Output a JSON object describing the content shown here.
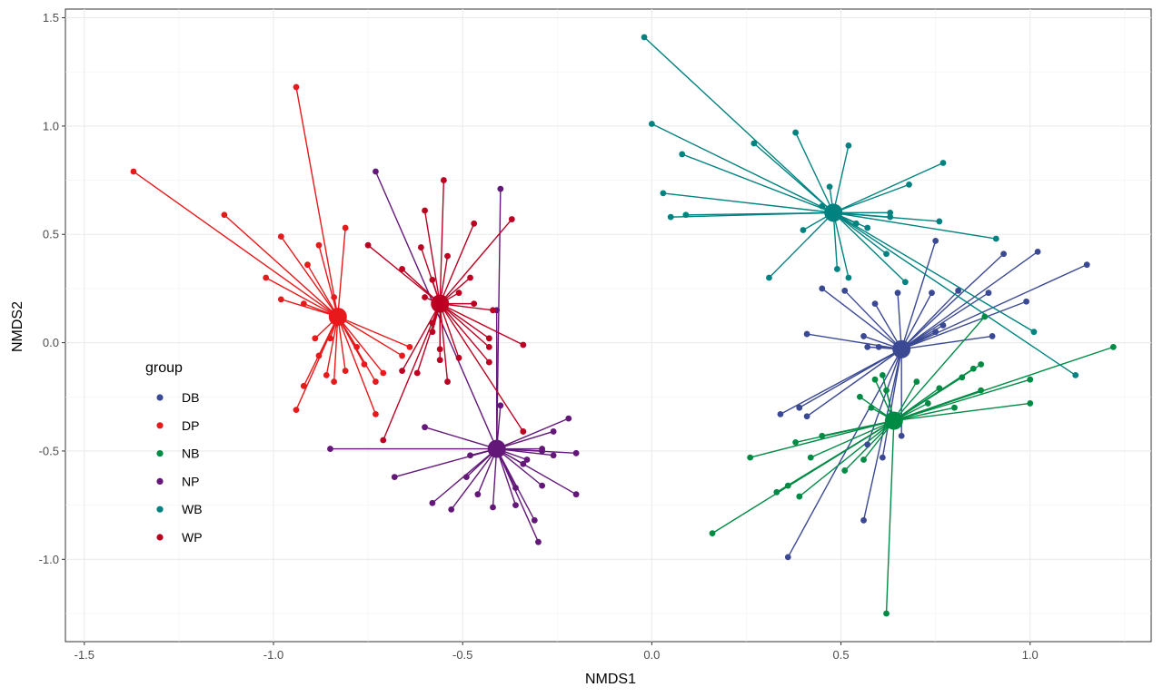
{
  "chart_data": {
    "type": "scatter",
    "xlabel": "NMDS1",
    "ylabel": "NMDS2",
    "xlim": [
      -1.55,
      1.32
    ],
    "ylim": [
      -1.38,
      1.54
    ],
    "xticks": [
      -1.5,
      -1.0,
      -0.5,
      0.0,
      0.5,
      1.0
    ],
    "xtick_labels": [
      "-1.5",
      "-1.0",
      "-0.5",
      "0.0",
      "0.5",
      "1.0"
    ],
    "yticks": [
      -1.0,
      -0.5,
      0.0,
      0.5,
      1.0,
      1.5
    ],
    "ytick_labels": [
      "-1.0",
      "-0.5",
      "0.0",
      "0.5",
      "1.0",
      "1.5"
    ],
    "grid": true,
    "legend_title": "group",
    "legend_position": "inside-left",
    "series": [
      {
        "name": "DB",
        "color": "#3B4994",
        "centroid": [
          0.66,
          -0.03
        ],
        "points": [
          [
            0.75,
            0.47
          ],
          [
            1.02,
            0.42
          ],
          [
            0.93,
            0.41
          ],
          [
            1.15,
            0.36
          ],
          [
            0.81,
            0.24
          ],
          [
            0.89,
            0.23
          ],
          [
            0.99,
            0.19
          ],
          [
            0.45,
            0.25
          ],
          [
            0.51,
            0.24
          ],
          [
            0.59,
            0.18
          ],
          [
            0.74,
            0.23
          ],
          [
            0.65,
            0.23
          ],
          [
            0.77,
            0.08
          ],
          [
            0.41,
            0.04
          ],
          [
            0.56,
            0.03
          ],
          [
            0.57,
            -0.02
          ],
          [
            0.6,
            -0.02
          ],
          [
            0.65,
            -0.03
          ],
          [
            0.75,
            0.05
          ],
          [
            0.9,
            0.03
          ],
          [
            0.34,
            -0.33
          ],
          [
            0.39,
            -0.3
          ],
          [
            0.41,
            -0.34
          ],
          [
            0.57,
            -0.47
          ],
          [
            0.61,
            -0.53
          ],
          [
            0.66,
            -0.43
          ],
          [
            0.56,
            -0.82
          ],
          [
            0.36,
            -0.99
          ]
        ]
      },
      {
        "name": "DP",
        "color": "#E8191B",
        "centroid": [
          -0.83,
          0.12
        ],
        "points": [
          [
            -1.37,
            0.79
          ],
          [
            -0.94,
            1.18
          ],
          [
            -1.13,
            0.59
          ],
          [
            -0.98,
            0.49
          ],
          [
            -0.91,
            0.36
          ],
          [
            -1.02,
            0.3
          ],
          [
            -0.98,
            0.2
          ],
          [
            -0.92,
            0.18
          ],
          [
            -0.84,
            0.21
          ],
          [
            -0.81,
            0.53
          ],
          [
            -0.88,
            0.45
          ],
          [
            -0.89,
            0.02
          ],
          [
            -0.88,
            -0.06
          ],
          [
            -0.86,
            -0.15
          ],
          [
            -0.94,
            -0.31
          ],
          [
            -0.92,
            -0.2
          ],
          [
            -0.84,
            -0.18
          ],
          [
            -0.81,
            -0.13
          ],
          [
            -0.78,
            -0.02
          ],
          [
            -0.76,
            -0.1
          ],
          [
            -0.73,
            -0.18
          ],
          [
            -0.73,
            -0.33
          ],
          [
            -0.71,
            -0.14
          ],
          [
            -0.66,
            -0.06
          ],
          [
            -0.64,
            -0.02
          ],
          [
            -0.85,
            0.02
          ]
        ]
      },
      {
        "name": "NB",
        "color": "#008B45",
        "centroid": [
          0.64,
          -0.36
        ],
        "points": [
          [
            0.88,
            0.12
          ],
          [
            1.22,
            -0.02
          ],
          [
            1.0,
            -0.17
          ],
          [
            1.0,
            -0.28
          ],
          [
            0.87,
            -0.22
          ],
          [
            0.87,
            -0.1
          ],
          [
            0.85,
            -0.12
          ],
          [
            0.82,
            -0.16
          ],
          [
            0.76,
            -0.21
          ],
          [
            0.73,
            -0.28
          ],
          [
            0.7,
            -0.18
          ],
          [
            0.61,
            -0.15
          ],
          [
            0.59,
            -0.17
          ],
          [
            0.55,
            -0.25
          ],
          [
            0.58,
            -0.3
          ],
          [
            0.62,
            -0.22
          ],
          [
            0.45,
            -0.43
          ],
          [
            0.38,
            -0.46
          ],
          [
            0.42,
            -0.53
          ],
          [
            0.26,
            -0.53
          ],
          [
            0.33,
            -0.69
          ],
          [
            0.36,
            -0.66
          ],
          [
            0.39,
            -0.71
          ],
          [
            0.51,
            -0.59
          ],
          [
            0.56,
            -0.54
          ],
          [
            0.16,
            -0.88
          ],
          [
            0.62,
            -1.25
          ],
          [
            0.8,
            -0.3
          ]
        ]
      },
      {
        "name": "NP",
        "color": "#631879",
        "centroid": [
          -0.41,
          -0.49
        ],
        "points": [
          [
            -0.73,
            0.79
          ],
          [
            -0.4,
            0.71
          ],
          [
            -0.41,
            0.15
          ],
          [
            -0.4,
            -0.29
          ],
          [
            -0.22,
            -0.35
          ],
          [
            -0.26,
            -0.41
          ],
          [
            -0.29,
            -0.49
          ],
          [
            -0.29,
            -0.5
          ],
          [
            -0.26,
            -0.52
          ],
          [
            -0.2,
            -0.51
          ],
          [
            -0.6,
            -0.39
          ],
          [
            -0.85,
            -0.49
          ],
          [
            -0.68,
            -0.62
          ],
          [
            -0.58,
            -0.74
          ],
          [
            -0.53,
            -0.77
          ],
          [
            -0.49,
            -0.62
          ],
          [
            -0.46,
            -0.7
          ],
          [
            -0.42,
            -0.76
          ],
          [
            -0.36,
            -0.67
          ],
          [
            -0.34,
            -0.56
          ],
          [
            -0.29,
            -0.66
          ],
          [
            -0.31,
            -0.82
          ],
          [
            -0.3,
            -0.92
          ],
          [
            -0.2,
            -0.7
          ],
          [
            -0.48,
            -0.52
          ],
          [
            -0.33,
            -0.54
          ],
          [
            -0.36,
            -0.75
          ]
        ]
      },
      {
        "name": "WB",
        "color": "#008280",
        "centroid": [
          0.48,
          0.6
        ],
        "points": [
          [
            -0.02,
            1.41
          ],
          [
            0.0,
            1.01
          ],
          [
            0.08,
            0.87
          ],
          [
            0.27,
            0.92
          ],
          [
            0.38,
            0.97
          ],
          [
            0.52,
            0.91
          ],
          [
            0.47,
            0.72
          ],
          [
            0.03,
            0.69
          ],
          [
            0.05,
            0.58
          ],
          [
            0.09,
            0.59
          ],
          [
            0.4,
            0.52
          ],
          [
            0.45,
            0.63
          ],
          [
            0.54,
            0.55
          ],
          [
            0.57,
            0.53
          ],
          [
            0.63,
            0.6
          ],
          [
            0.63,
            0.58
          ],
          [
            0.68,
            0.73
          ],
          [
            0.76,
            0.56
          ],
          [
            0.77,
            0.83
          ],
          [
            0.91,
            0.48
          ],
          [
            0.62,
            0.41
          ],
          [
            0.49,
            0.34
          ],
          [
            0.52,
            0.3
          ],
          [
            0.67,
            0.28
          ],
          [
            0.31,
            0.3
          ],
          [
            1.01,
            0.05
          ],
          [
            1.12,
            -0.15
          ]
        ]
      },
      {
        "name": "WP",
        "color": "#BB0021",
        "centroid": [
          -0.56,
          0.18
        ],
        "points": [
          [
            -0.55,
            0.75
          ],
          [
            -0.6,
            0.61
          ],
          [
            -0.47,
            0.55
          ],
          [
            -0.37,
            0.57
          ],
          [
            -0.75,
            0.45
          ],
          [
            -0.61,
            0.44
          ],
          [
            -0.66,
            0.34
          ],
          [
            -0.54,
            0.4
          ],
          [
            -0.58,
            0.29
          ],
          [
            -0.48,
            0.3
          ],
          [
            -0.6,
            0.21
          ],
          [
            -0.51,
            0.23
          ],
          [
            -0.47,
            0.18
          ],
          [
            -0.42,
            0.15
          ],
          [
            -0.58,
            0.09
          ],
          [
            -0.58,
            0.05
          ],
          [
            -0.56,
            -0.03
          ],
          [
            -0.51,
            -0.07
          ],
          [
            -0.43,
            -0.02
          ],
          [
            -0.43,
            -0.09
          ],
          [
            -0.43,
            0.02
          ],
          [
            -0.34,
            -0.01
          ],
          [
            -0.54,
            -0.18
          ],
          [
            -0.62,
            -0.14
          ],
          [
            -0.66,
            -0.13
          ],
          [
            -0.71,
            -0.45
          ],
          [
            -0.34,
            -0.41
          ],
          [
            -0.56,
            -0.08
          ]
        ]
      }
    ]
  }
}
